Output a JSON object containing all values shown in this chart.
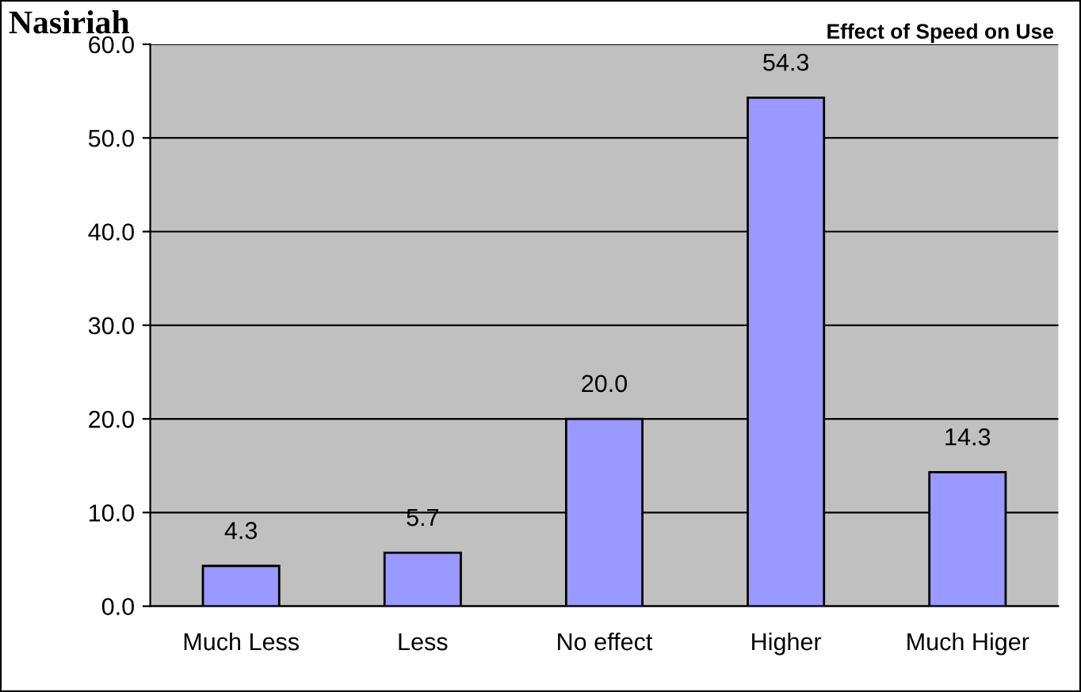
{
  "chart_data": {
    "type": "bar",
    "title": "Nasiriah",
    "subtitle": "Effect of Speed on Use",
    "categories": [
      "Much Less",
      "Less",
      "No effect",
      "Higher",
      "Much Higer"
    ],
    "values": [
      4.3,
      5.7,
      20.0,
      54.3,
      14.3
    ],
    "color": "#9999ff",
    "ylim": [
      0,
      60
    ],
    "yticks": [
      {
        "value": 0,
        "label": "0.0"
      },
      {
        "value": 10,
        "label": "10.0"
      },
      {
        "value": 20,
        "label": "20.0"
      },
      {
        "value": 30,
        "label": "30.0"
      },
      {
        "value": 40,
        "label": "40.0"
      },
      {
        "value": 50,
        "label": "50.0"
      },
      {
        "value": 60,
        "label": "60.0"
      }
    ],
    "value_labels": [
      "4.3",
      "5.7",
      "20.0",
      "54.3",
      "14.3"
    ],
    "grid": "y"
  }
}
